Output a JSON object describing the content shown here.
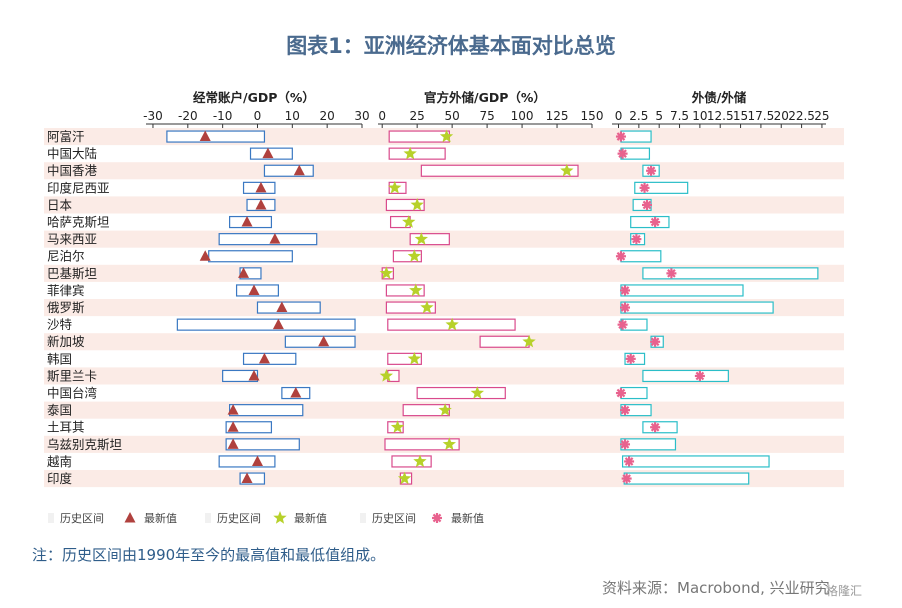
{
  "title": "图表1：亚洲经济体基本面对比总览",
  "note": "注：历史区间由1990年至今的最高值和最低值组成。",
  "source": "资料来源：Macrobond, 兴业研究",
  "watermark": "格隆汇",
  "colors": {
    "current_account": "#3a78c2",
    "reserves": "#d94a8c",
    "debt": "#2bbec8",
    "triangle": "#b0413e",
    "star": "#b7d12a",
    "asterisk": "#e8628e",
    "stripe": "#fbebe6"
  },
  "chart_data": {
    "type": "range_marker",
    "categories": [
      "阿富汗",
      "中国大陆",
      "中国香港",
      "印度尼西亚",
      "日本",
      "哈萨克斯坦",
      "马来西亚",
      "尼泊尔",
      "巴基斯坦",
      "菲律宾",
      "俄罗斯",
      "沙特",
      "新加坡",
      "韩国",
      "斯里兰卡",
      "中国台湾",
      "泰国",
      "土耳其",
      "乌兹别克斯坦",
      "越南",
      "印度"
    ],
    "panels": [
      {
        "title": "经常账户/GDP（%）",
        "ticks": [
          -30,
          -20,
          -10,
          0,
          10,
          20,
          30
        ],
        "xlim": [
          -32,
          30
        ],
        "marker": "triangle",
        "color_key": "current_account",
        "legend": {
          "range_label": "历史区间",
          "marker_label": "最新值"
        },
        "ranges": [
          [
            -26,
            2
          ],
          [
            -2,
            10
          ],
          [
            2,
            16
          ],
          [
            -4,
            5
          ],
          [
            -3,
            5
          ],
          [
            -8,
            4
          ],
          [
            -11,
            17
          ],
          [
            -14,
            10
          ],
          [
            -5,
            1
          ],
          [
            -6,
            6
          ],
          [
            0,
            18
          ],
          [
            -23,
            28
          ],
          [
            8,
            28
          ],
          [
            -4,
            11
          ],
          [
            -10,
            0
          ],
          [
            7,
            15
          ],
          [
            -8,
            13
          ],
          [
            -9,
            4
          ],
          [
            -9,
            12
          ],
          [
            -11,
            5
          ],
          [
            -5,
            2
          ]
        ],
        "latest": [
          -15,
          3,
          12,
          1,
          1,
          -3,
          5,
          -15,
          -4,
          -1,
          7,
          6,
          19,
          2,
          -1,
          11,
          -7,
          -7,
          -7,
          0,
          -3
        ]
      },
      {
        "title": "官方外储/GDP（%）",
        "ticks": [
          0,
          25,
          50,
          75,
          100,
          125,
          150
        ],
        "xlim": [
          -3,
          150
        ],
        "marker": "star",
        "color_key": "reserves",
        "legend": {
          "range_label": "历史区间",
          "marker_label": "最新值"
        },
        "ranges": [
          [
            5,
            48
          ],
          [
            5,
            45
          ],
          [
            28,
            140
          ],
          [
            5,
            17
          ],
          [
            3,
            30
          ],
          [
            6,
            20
          ],
          [
            20,
            48
          ],
          [
            8,
            28
          ],
          [
            0,
            8
          ],
          [
            3,
            30
          ],
          [
            3,
            38
          ],
          [
            4,
            95
          ],
          [
            70,
            105
          ],
          [
            4,
            28
          ],
          [
            4,
            12
          ],
          [
            25,
            88
          ],
          [
            15,
            48
          ],
          [
            4,
            15
          ],
          [
            2,
            55
          ],
          [
            7,
            35
          ],
          [
            13,
            21
          ]
        ],
        "latest": [
          46,
          20,
          132,
          9,
          25,
          19,
          28,
          23,
          3,
          24,
          32,
          50,
          105,
          23,
          3,
          68,
          45,
          11,
          48,
          27,
          16
        ]
      },
      {
        "title": "外债/外储",
        "ticks": [
          0,
          2.5,
          5,
          7.5,
          10,
          12.5,
          15,
          17.5,
          20,
          22.5,
          25
        ],
        "xlim": [
          -0.8,
          25.5
        ],
        "marker": "asterisk",
        "color_key": "debt",
        "legend": {
          "range_label": "历史区间",
          "marker_label": "最新值"
        },
        "ranges": [
          [
            0.3,
            4
          ],
          [
            0.3,
            3.8
          ],
          [
            3,
            5
          ],
          [
            2,
            8.5
          ],
          [
            1.8,
            4
          ],
          [
            1.5,
            6.2
          ],
          [
            1.5,
            3.2
          ],
          [
            0.3,
            5.2
          ],
          [
            3,
            24.5
          ],
          [
            0.3,
            15.3
          ],
          [
            0.3,
            19
          ],
          [
            0.3,
            3.5
          ],
          [
            4,
            5.5
          ],
          [
            0.8,
            3.2
          ],
          [
            3,
            13.5
          ],
          [
            0.3,
            3.5
          ],
          [
            0.3,
            4
          ],
          [
            3,
            7.2
          ],
          [
            0.3,
            7
          ],
          [
            0.5,
            18.5
          ],
          [
            0.7,
            16
          ]
        ],
        "latest": [
          0.3,
          0.5,
          4,
          3.2,
          3.5,
          4.5,
          2.2,
          0.3,
          6.5,
          0.8,
          0.8,
          0.5,
          4.5,
          1.5,
          10,
          0.3,
          0.8,
          4.5,
          0.8,
          1.3,
          1
        ]
      }
    ]
  }
}
